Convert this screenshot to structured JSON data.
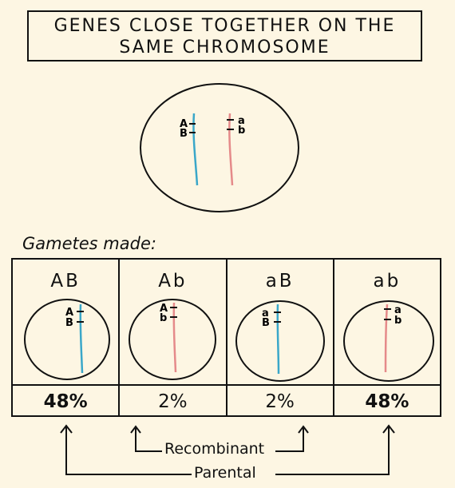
{
  "title": {
    "line1": "GENES CLOSE TOGETHER ON THE",
    "line2": "SAME CHROMOSOME"
  },
  "parent_cell": {
    "left_labels": [
      "A",
      "B"
    ],
    "right_labels": [
      "a",
      "b"
    ]
  },
  "gametes_label": "Gametes made:",
  "gametes": [
    {
      "label": "AB",
      "alleles": [
        "A",
        "B"
      ],
      "percent": "48%",
      "bold": true,
      "chromosome_color": "#3aa7c9"
    },
    {
      "label": "Ab",
      "alleles": [
        "A",
        "b"
      ],
      "percent": "2%",
      "bold": false,
      "chromosome_color": "#e58a8a"
    },
    {
      "label": "aB",
      "alleles": [
        "a",
        "B"
      ],
      "percent": "2%",
      "bold": false,
      "chromosome_color": "#3aa7c9"
    },
    {
      "label": "ab",
      "alleles": [
        "a",
        "b"
      ],
      "percent": "48%",
      "bold": true,
      "chromosome_color": "#e58a8a"
    }
  ],
  "annotations": {
    "recombinant": "Recombinant",
    "parental": "Parental"
  },
  "colors": {
    "blue": "#3aa7c9",
    "pink": "#e58a8a",
    "background": "#fdf6e3",
    "ink": "#111111"
  }
}
